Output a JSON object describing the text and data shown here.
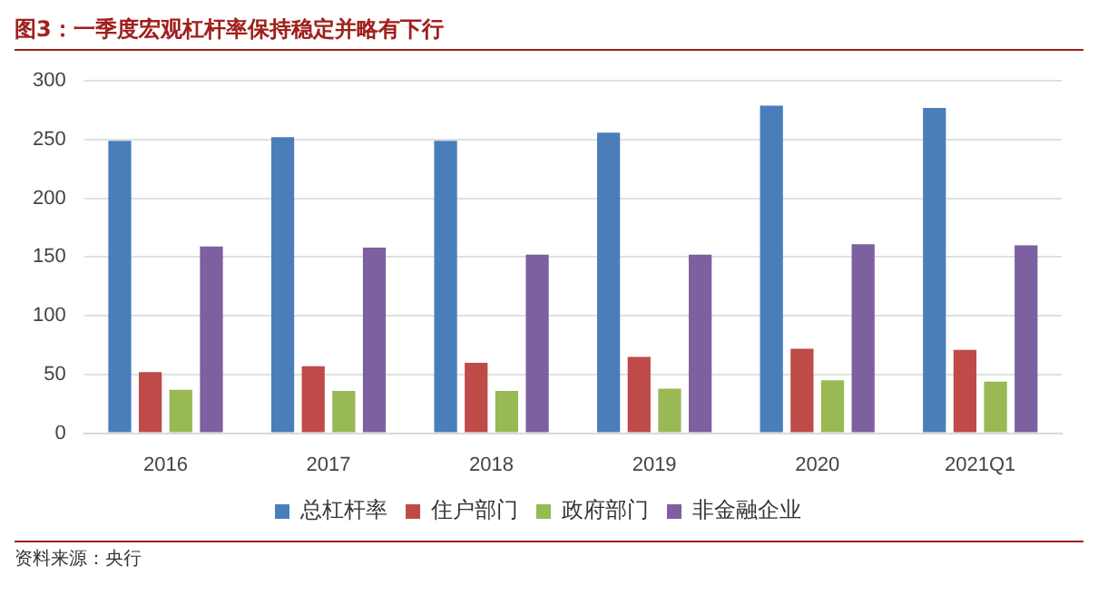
{
  "chart_data": {
    "type": "bar",
    "title": "图3：一季度宏观杠杆率保持稳定并略有下行",
    "categories": [
      "2016",
      "2017",
      "2018",
      "2019",
      "2020",
      "2021Q1"
    ],
    "series": [
      {
        "name": "总杠杆率",
        "color": "#4a7ebb",
        "values": [
          249,
          252,
          249,
          256,
          279,
          277
        ]
      },
      {
        "name": "住户部门",
        "color": "#be4b48",
        "values": [
          52,
          57,
          60,
          65,
          72,
          71
        ]
      },
      {
        "name": "政府部门",
        "color": "#98b954",
        "values": [
          37,
          36,
          36,
          38,
          45,
          44
        ]
      },
      {
        "name": "非金融企业",
        "color": "#7d60a0",
        "values": [
          159,
          158,
          152,
          152,
          161,
          160
        ]
      }
    ],
    "ylim": [
      0,
      300
    ],
    "yticks": [
      0,
      50,
      100,
      150,
      200,
      250,
      300
    ],
    "grid": "y",
    "legend": "bottom",
    "annotations": [
      "资料来源：央行"
    ]
  }
}
